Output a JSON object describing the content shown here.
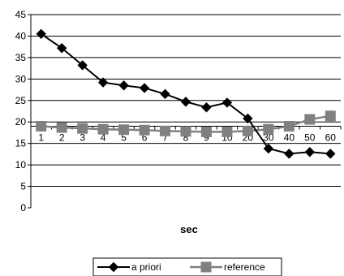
{
  "chart_data": {
    "type": "line",
    "categories": [
      "1",
      "2",
      "3",
      "4",
      "5",
      "6",
      "7",
      "8",
      "9",
      "10",
      "20",
      "30",
      "40",
      "50",
      "60"
    ],
    "series": [
      {
        "name": "a priori",
        "marker": "diamond",
        "color": "#000000",
        "values": [
          40.5,
          37.2,
          33.2,
          29.2,
          28.5,
          27.9,
          26.5,
          24.7,
          23.4,
          24.5,
          20.8,
          13.8,
          12.6,
          13.0,
          12.6
        ]
      },
      {
        "name": "reference",
        "marker": "square",
        "color": "#808080",
        "values": [
          19.0,
          18.7,
          18.5,
          18.3,
          18.2,
          18.1,
          17.9,
          17.8,
          17.7,
          17.7,
          17.9,
          18.3,
          19.0,
          20.6,
          21.4
        ]
      }
    ],
    "yticks": [
      "0",
      "5",
      "10",
      "15",
      "20",
      "25",
      "30",
      "35",
      "40",
      "45"
    ],
    "ylim": [
      0,
      45
    ],
    "xlabel": "sec",
    "ylabel": "",
    "title": "",
    "grid": "horizontal",
    "x_axis_crosses_at": 19,
    "legend_position": "bottom"
  }
}
